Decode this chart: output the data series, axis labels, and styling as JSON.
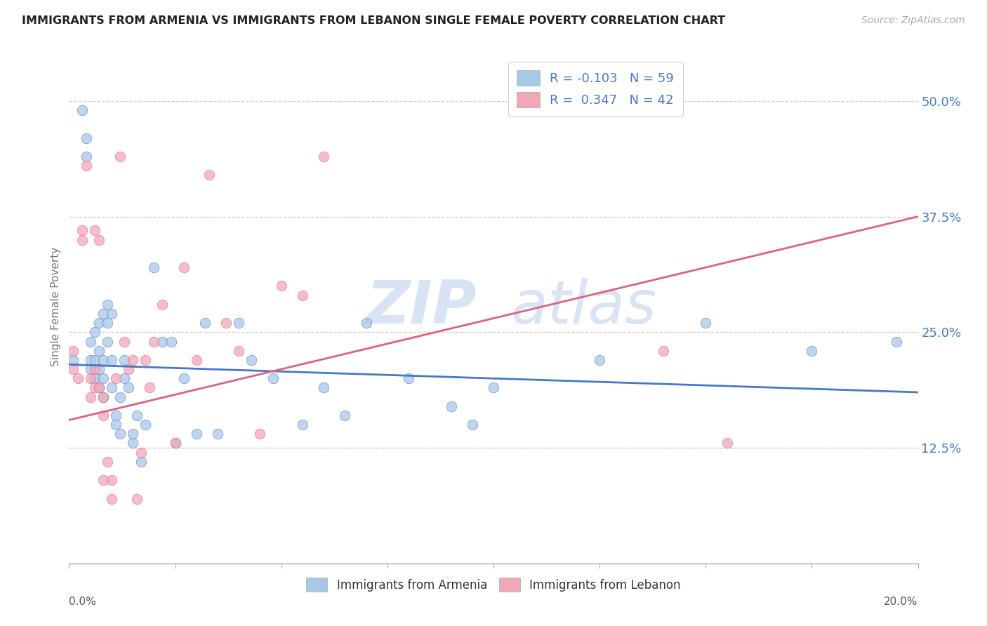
{
  "title": "IMMIGRANTS FROM ARMENIA VS IMMIGRANTS FROM LEBANON SINGLE FEMALE POVERTY CORRELATION CHART",
  "source": "Source: ZipAtlas.com",
  "ylabel": "Single Female Poverty",
  "ytick_labels": [
    "12.5%",
    "25.0%",
    "37.5%",
    "50.0%"
  ],
  "ytick_vals": [
    0.125,
    0.25,
    0.375,
    0.5
  ],
  "xlim": [
    0.0,
    0.2
  ],
  "ylim": [
    0.0,
    0.555
  ],
  "legend_text_arm": "R = -0.103   N = 59",
  "legend_text_leb": "R =  0.347   N = 42",
  "color_armenia": "#a8c8e8",
  "color_lebanon": "#f0a8b8",
  "color_line_armenia": "#4878c8",
  "color_line_lebanon": "#e06080",
  "watermark_zip": "ZIP",
  "watermark_atlas": "atlas",
  "watermark_color": "#c8d8ee",
  "background_color": "#ffffff",
  "arm_line_x0": 0.0,
  "arm_line_y0": 0.215,
  "arm_line_x1": 0.2,
  "arm_line_y1": 0.185,
  "leb_line_x0": 0.0,
  "leb_line_y0": 0.155,
  "leb_line_x1": 0.2,
  "leb_line_y1": 0.375,
  "armenia_x": [
    0.001,
    0.003,
    0.004,
    0.004,
    0.005,
    0.005,
    0.005,
    0.006,
    0.006,
    0.006,
    0.007,
    0.007,
    0.007,
    0.007,
    0.008,
    0.008,
    0.008,
    0.008,
    0.009,
    0.009,
    0.009,
    0.01,
    0.01,
    0.01,
    0.011,
    0.011,
    0.012,
    0.012,
    0.013,
    0.013,
    0.014,
    0.015,
    0.015,
    0.016,
    0.017,
    0.018,
    0.02,
    0.022,
    0.024,
    0.025,
    0.027,
    0.03,
    0.032,
    0.035,
    0.04,
    0.043,
    0.048,
    0.055,
    0.06,
    0.065,
    0.07,
    0.08,
    0.09,
    0.095,
    0.1,
    0.125,
    0.15,
    0.175,
    0.195
  ],
  "armenia_y": [
    0.22,
    0.49,
    0.46,
    0.44,
    0.21,
    0.22,
    0.24,
    0.2,
    0.22,
    0.25,
    0.19,
    0.21,
    0.23,
    0.26,
    0.18,
    0.2,
    0.22,
    0.27,
    0.24,
    0.26,
    0.28,
    0.19,
    0.22,
    0.27,
    0.16,
    0.15,
    0.18,
    0.14,
    0.2,
    0.22,
    0.19,
    0.13,
    0.14,
    0.16,
    0.11,
    0.15,
    0.32,
    0.24,
    0.24,
    0.13,
    0.2,
    0.14,
    0.26,
    0.14,
    0.26,
    0.22,
    0.2,
    0.15,
    0.19,
    0.16,
    0.26,
    0.2,
    0.17,
    0.15,
    0.19,
    0.22,
    0.26,
    0.23,
    0.24
  ],
  "lebanon_x": [
    0.001,
    0.001,
    0.002,
    0.003,
    0.003,
    0.004,
    0.005,
    0.005,
    0.006,
    0.006,
    0.006,
    0.007,
    0.007,
    0.008,
    0.008,
    0.008,
    0.009,
    0.01,
    0.01,
    0.011,
    0.012,
    0.013,
    0.014,
    0.015,
    0.016,
    0.017,
    0.018,
    0.019,
    0.02,
    0.022,
    0.025,
    0.027,
    0.03,
    0.033,
    0.037,
    0.04,
    0.045,
    0.05,
    0.055,
    0.06,
    0.14,
    0.155
  ],
  "lebanon_y": [
    0.23,
    0.21,
    0.2,
    0.36,
    0.35,
    0.43,
    0.18,
    0.2,
    0.19,
    0.21,
    0.36,
    0.35,
    0.19,
    0.16,
    0.18,
    0.09,
    0.11,
    0.09,
    0.07,
    0.2,
    0.44,
    0.24,
    0.21,
    0.22,
    0.07,
    0.12,
    0.22,
    0.19,
    0.24,
    0.28,
    0.13,
    0.32,
    0.22,
    0.42,
    0.26,
    0.23,
    0.14,
    0.3,
    0.29,
    0.44,
    0.23,
    0.13
  ]
}
